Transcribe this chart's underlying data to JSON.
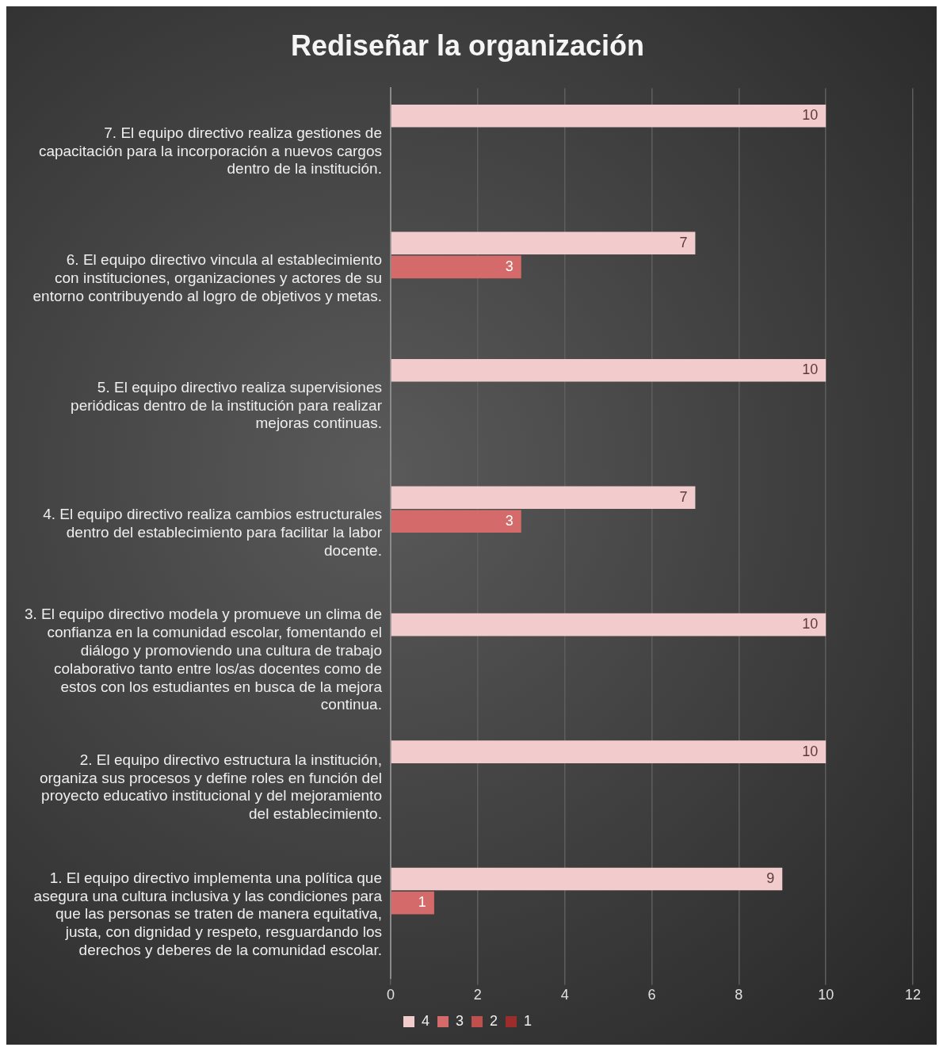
{
  "chart_data": {
    "type": "bar",
    "orientation": "horizontal",
    "title": "Rediseñar la organización",
    "categories": [
      "7. El equipo directivo realiza gestiones de capacitación para la incorporación a nuevos cargos dentro de la institución.",
      "6. El equipo directivo vincula al establecimiento con instituciones, organizaciones y actores de su entorno contribuyendo al logro de objetivos y metas.",
      "5. El equipo directivo realiza supervisiones periódicas dentro de la institución para realizar mejoras continuas.",
      "4. El equipo directivo realiza cambios estructurales dentro del establecimiento para facilitar la labor docente.",
      "3. El equipo directivo modela y promueve un clima de confianza en la comunidad escolar, fomentando el diálogo y promoviendo una cultura de trabajo colaborativo tanto entre los/as docentes como de estos con los estudiantes en busca de la mejora continua.",
      "2. El equipo directivo estructura la institución, organiza sus procesos y define roles en función del proyecto educativo institucional y del mejoramiento del establecimiento.",
      "1. El equipo directivo implementa una política que asegura una cultura inclusiva y las condiciones para que las personas se traten de manera equitativa, justa, con dignidad y respeto, resguardando los derechos y deberes de la comunidad escolar."
    ],
    "series": [
      {
        "name": "4",
        "color": "#f2cccc",
        "values": [
          10,
          7,
          10,
          7,
          10,
          10,
          9
        ]
      },
      {
        "name": "3",
        "color": "#d46a6a",
        "values": [
          null,
          3,
          null,
          3,
          null,
          null,
          1
        ]
      },
      {
        "name": "2",
        "color": "#c0504d",
        "values": [
          null,
          null,
          null,
          null,
          null,
          null,
          null
        ]
      },
      {
        "name": "1",
        "color": "#9b2d2a",
        "values": [
          null,
          null,
          null,
          null,
          null,
          null,
          null
        ]
      }
    ],
    "xlim": [
      0,
      12
    ],
    "xticks": [
      0,
      2,
      4,
      6,
      8,
      10,
      12
    ],
    "grid": "x",
    "legend": "bottom",
    "data_labels": true
  }
}
